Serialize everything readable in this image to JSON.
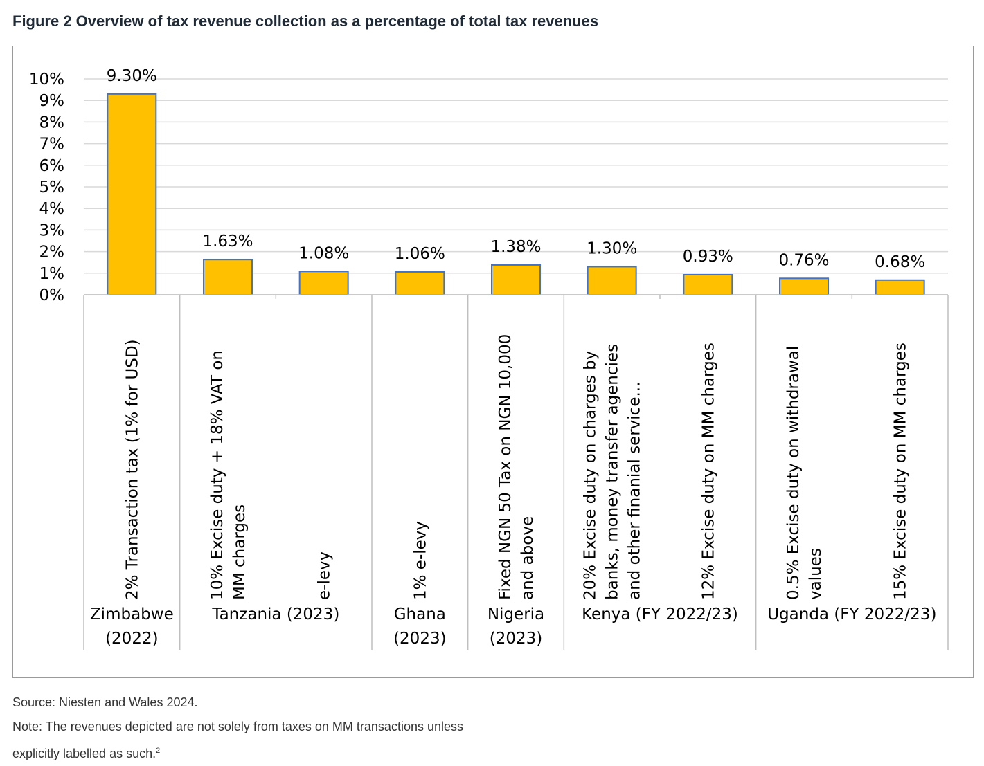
{
  "figure": {
    "title": "Figure 2 Overview of tax revenue collection as a percentage of total tax revenues",
    "source": "Source: Niesten and Wales 2024.",
    "note_line1": "Note: The revenues depicted are not solely from taxes on MM transactions unless",
    "note_line2": "explicitly labelled as such.",
    "note_footnote": "2"
  },
  "chart_data": {
    "type": "bar",
    "title": "",
    "xlabel": "",
    "ylabel": "",
    "ylim": [
      0,
      10
    ],
    "yticks": [
      "0%",
      "1%",
      "2%",
      "3%",
      "4%",
      "5%",
      "6%",
      "7%",
      "8%",
      "9%",
      "10%"
    ],
    "grid": true,
    "legend": "none",
    "bar_color": "#FFC000",
    "bar_outline": "#4472C4",
    "categories": [
      "2% Transaction tax (1% for USD)",
      "10% Excise duty + 18% VAT on MM charges",
      "e-levy",
      "1% e-levy",
      "Fixed NGN 50 Tax on NGN 10,000 and above",
      "20% Excise duty on charges by banks, money transfer agencies and other finanial service...",
      "12% Excise duty on MM charges",
      "0.5% Excise duty on withdrawal values",
      "15% Excise duty on MM charges"
    ],
    "category_lines": [
      [
        "2% Transaction tax (1% for USD)"
      ],
      [
        "10% Excise duty + 18% VAT on",
        "MM charges"
      ],
      [
        "e-levy"
      ],
      [
        "1% e-levy"
      ],
      [
        "Fixed NGN 50 Tax on NGN 10,000",
        "and above"
      ],
      [
        "20% Excise duty on charges by",
        "banks, money transfer agencies",
        "and other finanial service..."
      ],
      [
        "12% Excise duty on MM charges"
      ],
      [
        "0.5% Excise duty on withdrawal",
        "values"
      ],
      [
        "15% Excise duty on MM charges"
      ]
    ],
    "values": [
      9.3,
      1.63,
      1.08,
      1.06,
      1.38,
      1.3,
      0.93,
      0.76,
      0.68
    ],
    "data_labels": [
      "9.30%",
      "1.63%",
      "1.08%",
      "1.06%",
      "1.38%",
      "1.30%",
      "0.93%",
      "0.76%",
      "0.68%"
    ],
    "groups": [
      {
        "lines": [
          "Zimbabwe",
          "(2022)"
        ],
        "count": 1
      },
      {
        "lines": [
          "Tanzania (2023)"
        ],
        "count": 2
      },
      {
        "lines": [
          "Ghana",
          "(2023)"
        ],
        "count": 1
      },
      {
        "lines": [
          "Nigeria",
          "(2023)"
        ],
        "count": 1
      },
      {
        "lines": [
          "Kenya (FY 2022/23)"
        ],
        "count": 2
      },
      {
        "lines": [
          "Uganda (FY 2022/23)"
        ],
        "count": 2
      }
    ]
  }
}
